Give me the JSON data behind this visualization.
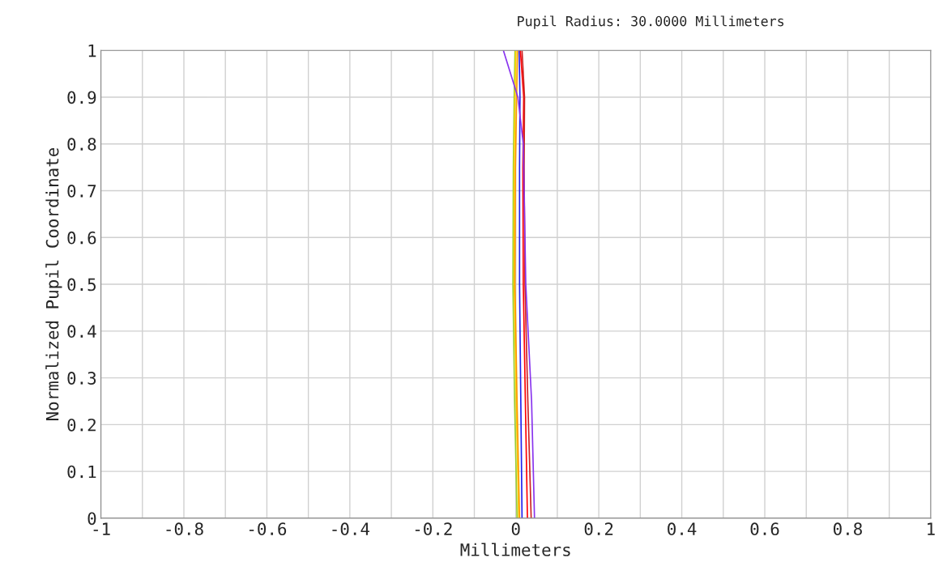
{
  "chart_data": {
    "type": "line",
    "title": "Pupil Radius: 30.0000 Millimeters",
    "xlabel": "Millimeters",
    "ylabel": "Normalized Pupil Coordinate",
    "xlim": [
      -1,
      1
    ],
    "ylim": [
      0,
      1
    ],
    "xticks": [
      -1,
      {
        "value": -0.9,
        "label": null
      },
      -0.8,
      {
        "value": -0.7,
        "label": null
      },
      -0.6,
      {
        "value": -0.5,
        "label": null
      },
      -0.4,
      {
        "value": -0.3,
        "label": null
      },
      -0.2,
      {
        "value": -0.1,
        "label": null
      },
      0,
      {
        "value": 0.1,
        "label": null
      },
      0.2,
      {
        "value": 0.3,
        "label": null
      },
      0.4,
      {
        "value": 0.5,
        "label": null
      },
      0.6,
      {
        "value": 0.7,
        "label": null
      },
      0.8,
      {
        "value": 0.9,
        "label": null
      },
      1
    ],
    "yticks": [
      0,
      0.1,
      0.2,
      0.3,
      0.4,
      0.5,
      0.6,
      0.7,
      0.8,
      0.9,
      1
    ],
    "grid": true,
    "legend": false,
    "series": [
      {
        "color": "#99cc33",
        "x": [
          0.003,
          -0.003,
          -0.007,
          -0.006,
          -0.004,
          -0.002
        ],
        "values": [
          0,
          0.25,
          0.5,
          0.75,
          0.9,
          1
        ]
      },
      {
        "color": "#ffd700",
        "x": [
          0.007,
          0.001,
          -0.004,
          -0.004,
          -0.002,
          0.0
        ],
        "values": [
          0,
          0.25,
          0.5,
          0.75,
          0.9,
          1
        ]
      },
      {
        "color": "#ff9900",
        "x": [
          0.009,
          0.003,
          -0.002,
          -0.001,
          0.002,
          0.004
        ],
        "values": [
          0,
          0.25,
          0.5,
          0.75,
          0.9,
          1
        ]
      },
      {
        "color": "#2222ee",
        "x": [
          0.015,
          0.012,
          0.009,
          0.009,
          0.01,
          0.008
        ],
        "values": [
          0,
          0.25,
          0.5,
          0.75,
          0.9,
          1
        ]
      },
      {
        "color": "#ff0000",
        "x": [
          0.028,
          0.023,
          0.018,
          0.017,
          0.019,
          0.011
        ],
        "values": [
          0,
          0.25,
          0.5,
          0.75,
          0.9,
          1
        ]
      },
      {
        "color": "#cc2222",
        "x": [
          0.037,
          0.029,
          0.022,
          0.02,
          0.021,
          0.015
        ],
        "values": [
          0,
          0.25,
          0.5,
          0.75,
          0.9,
          1
        ]
      },
      {
        "color": "#8833ee",
        "x": [
          0.045,
          0.038,
          0.024,
          0.018,
          0.005,
          -0.03
        ],
        "values": [
          0,
          0.25,
          0.5,
          0.8,
          0.9,
          1
        ]
      }
    ]
  }
}
